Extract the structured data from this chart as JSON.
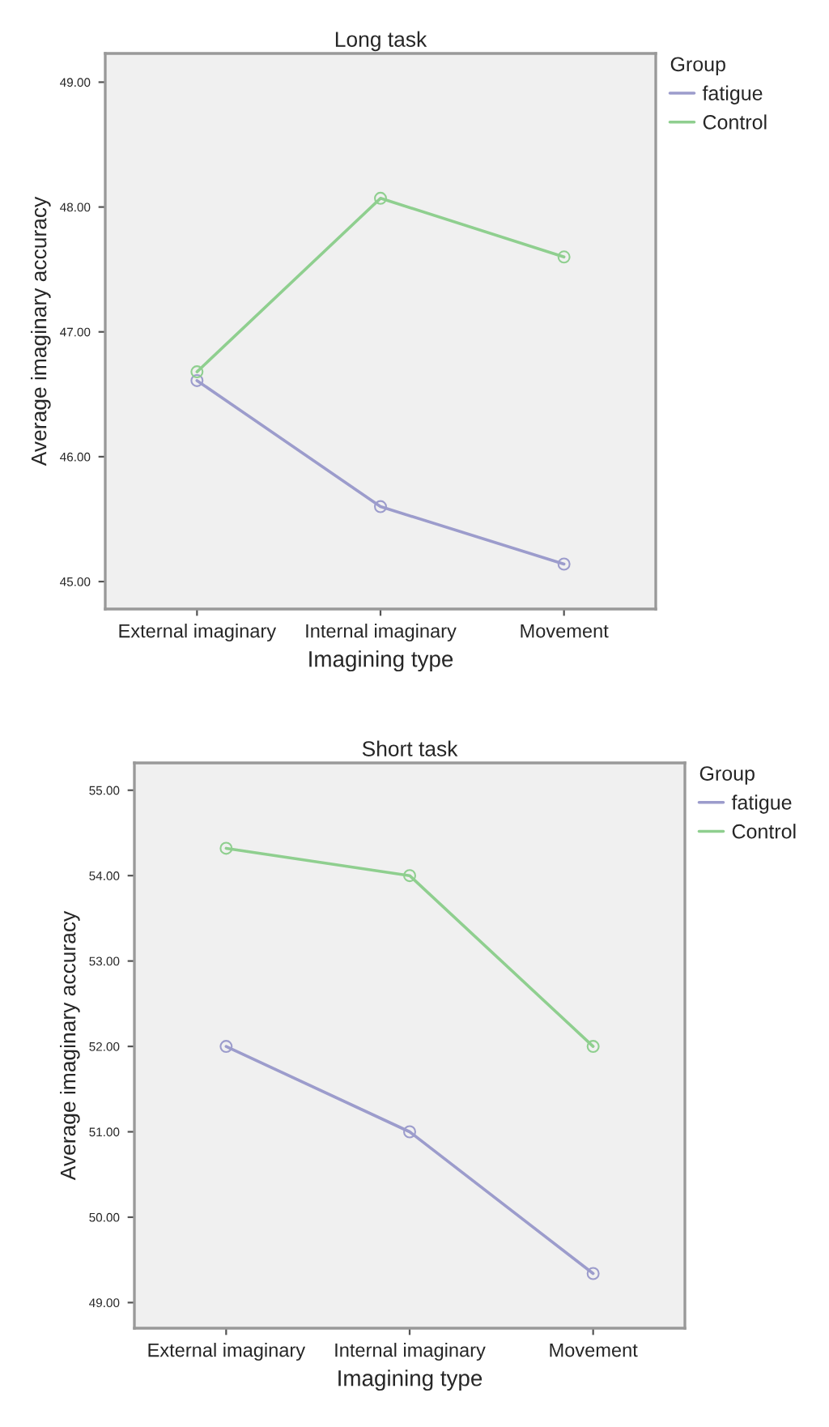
{
  "chart_data": [
    {
      "type": "line",
      "title": "Long task",
      "xlabel": "Imagining type",
      "ylabel": "Average imaginary accuracy",
      "legend_title": "Group",
      "legend": "top right",
      "marker": "circle",
      "grid": false,
      "categories": [
        "External imaginary",
        "Internal imaginary",
        "Movement"
      ],
      "ylim": [
        44.78,
        49.23
      ],
      "yticks": [
        {
          "value": 45,
          "label": "45.00"
        },
        {
          "value": 46,
          "label": "46.00"
        },
        {
          "value": 47,
          "label": "47.00"
        },
        {
          "value": 48,
          "label": "48.00"
        },
        {
          "value": 49,
          "label": "49.00"
        }
      ],
      "series": [
        {
          "name": "fatigue",
          "color": "#9c9ccc",
          "values": [
            46.61,
            45.6,
            45.14
          ]
        },
        {
          "name": "Control",
          "color": "#8fcf8f",
          "values": [
            46.68,
            48.07,
            47.6
          ]
        }
      ]
    },
    {
      "type": "line",
      "title": "Short task",
      "xlabel": "Imagining type",
      "ylabel": "Average imaginary accuracy",
      "legend_title": "Group",
      "legend": "top right",
      "marker": "circle",
      "grid": false,
      "categories": [
        "External imaginary",
        "Internal imaginary",
        "Movement"
      ],
      "ylim": [
        48.7,
        55.32
      ],
      "yticks": [
        {
          "value": 49,
          "label": "49.00"
        },
        {
          "value": 50,
          "label": "50.00"
        },
        {
          "value": 51,
          "label": "51.00"
        },
        {
          "value": 52,
          "label": "52.00"
        },
        {
          "value": 53,
          "label": "53.00"
        },
        {
          "value": 54,
          "label": "54.00"
        },
        {
          "value": 55,
          "label": "55.00"
        }
      ],
      "series": [
        {
          "name": "fatigue",
          "color": "#9c9ccc",
          "values": [
            52.0,
            51.0,
            49.34
          ]
        },
        {
          "name": "Control",
          "color": "#8fcf8f",
          "values": [
            54.32,
            54.0,
            52.0
          ]
        }
      ]
    }
  ]
}
